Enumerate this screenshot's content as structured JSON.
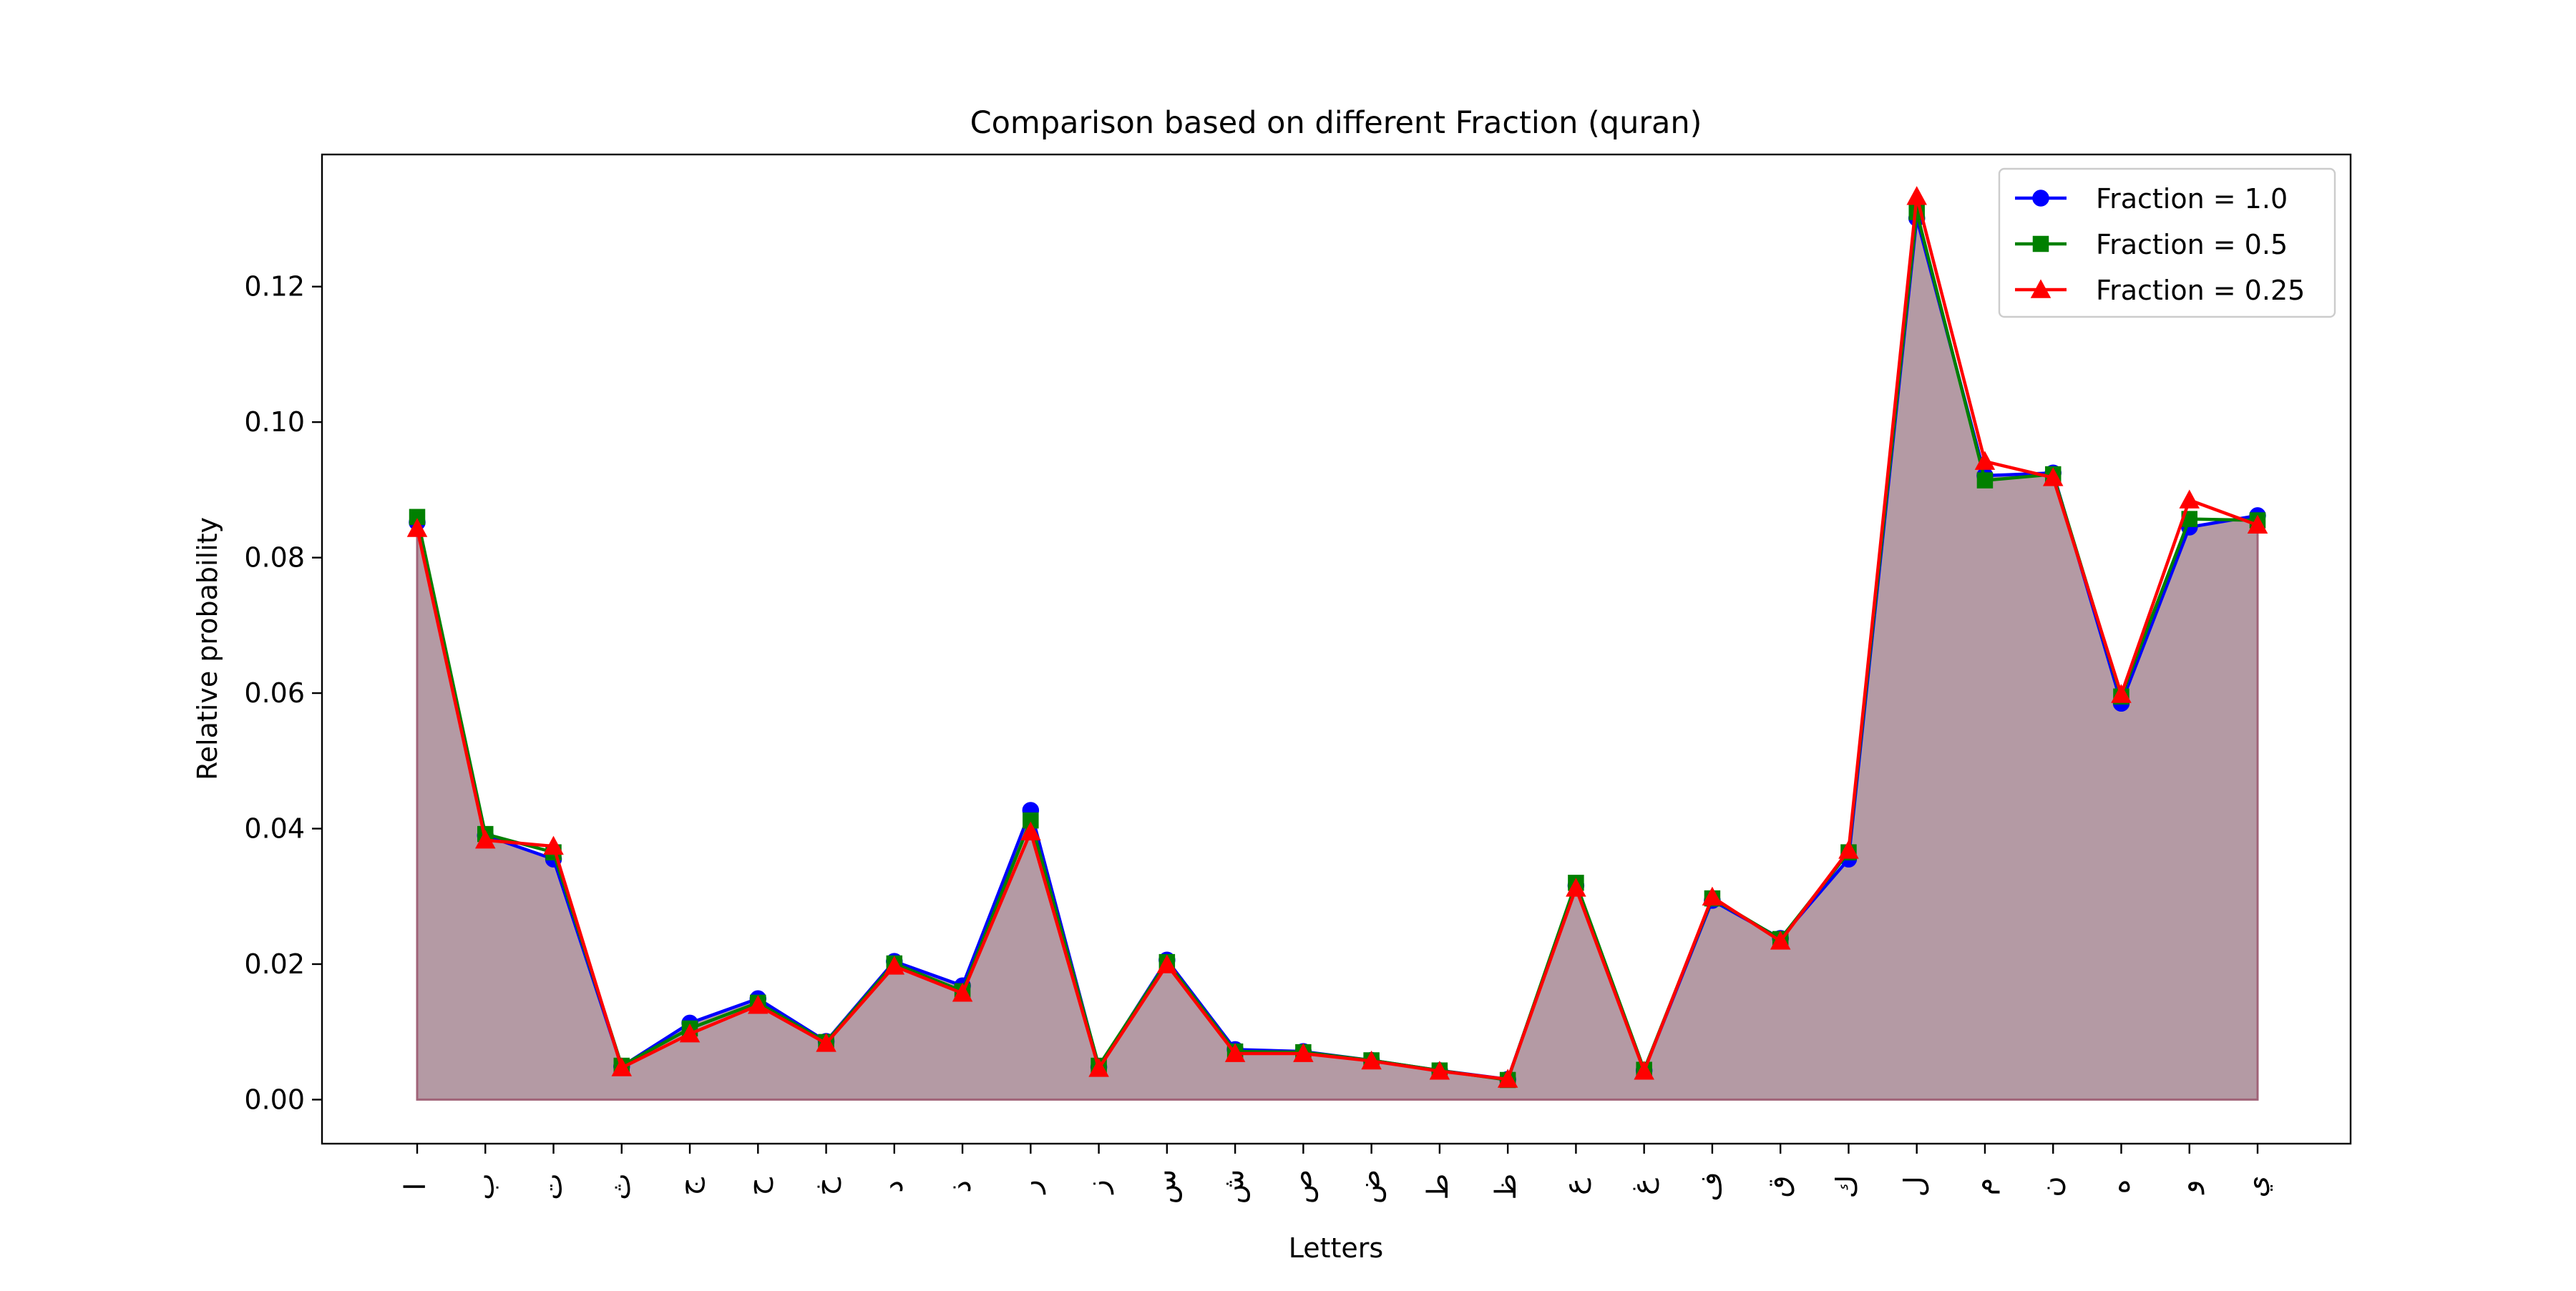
{
  "chart_data": {
    "type": "line",
    "title": "Comparison based on different Fraction (quran)",
    "xlabel": "Letters",
    "ylabel": "Relative probability",
    "ylim": [
      -0.0065,
      0.1395
    ],
    "yticks": [
      "0.00",
      "0.02",
      "0.04",
      "0.06",
      "0.08",
      "0.10",
      "0.12"
    ],
    "grid": false,
    "legend_position": "top-right",
    "categories": [
      "ا",
      "ب",
      "ت",
      "ث",
      "ج",
      "ح",
      "خ",
      "د",
      "ذ",
      "ر",
      "ز",
      "س",
      "ش",
      "ص",
      "ض",
      "ط",
      "ظ",
      "ع",
      "غ",
      "ف",
      "ق",
      "ك",
      "ل",
      "م",
      "ن",
      "ه",
      "و",
      "ي"
    ],
    "series": [
      {
        "name": "Fraction = 1.0",
        "color": "#0000ff",
        "marker": "circle",
        "values": [
          0.0852,
          0.039,
          0.0355,
          0.0049,
          0.0113,
          0.0149,
          0.0086,
          0.0204,
          0.0168,
          0.0427,
          0.0048,
          0.0206,
          0.0074,
          0.0071,
          0.0058,
          0.0043,
          0.003,
          0.0316,
          0.0043,
          0.0294,
          0.0238,
          0.0355,
          0.1301,
          0.0921,
          0.0925,
          0.0585,
          0.0845,
          0.0862
        ]
      },
      {
        "name": "Fraction = 0.5",
        "color": "#008000",
        "marker": "square",
        "values": [
          0.086,
          0.0392,
          0.0365,
          0.005,
          0.0105,
          0.0143,
          0.0085,
          0.0201,
          0.016,
          0.0412,
          0.005,
          0.0203,
          0.0071,
          0.007,
          0.0058,
          0.0043,
          0.0029,
          0.032,
          0.0044,
          0.0297,
          0.0237,
          0.0365,
          0.131,
          0.0914,
          0.0923,
          0.0595,
          0.0857,
          0.0855
        ]
      },
      {
        "name": "Fraction = 0.25",
        "color": "#ff0000",
        "marker": "triangle",
        "values": [
          0.0843,
          0.0383,
          0.0374,
          0.0047,
          0.0097,
          0.0139,
          0.0083,
          0.0197,
          0.0157,
          0.0395,
          0.0046,
          0.0199,
          0.0068,
          0.0068,
          0.0057,
          0.0042,
          0.003,
          0.0312,
          0.0042,
          0.0299,
          0.0234,
          0.0368,
          0.1333,
          0.0942,
          0.0918,
          0.0598,
          0.0885,
          0.0848
        ]
      }
    ],
    "fill_color": "#b49aa4",
    "fill_edge_color": "#a06378"
  }
}
